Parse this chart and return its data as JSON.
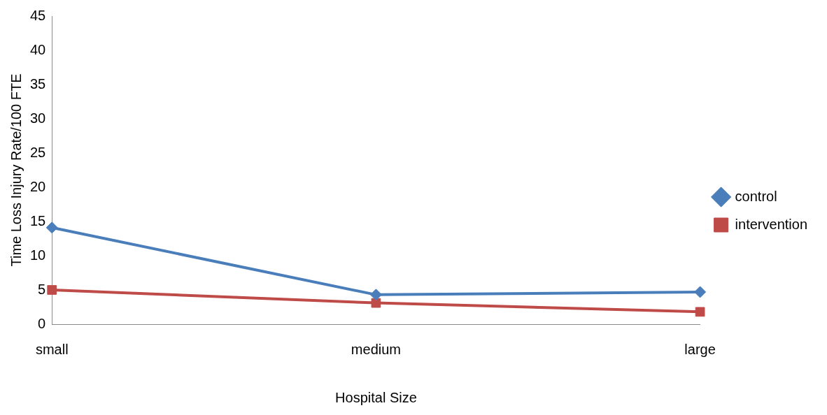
{
  "chart_data": {
    "type": "line",
    "xlabel": "Hospital Size",
    "ylabel": "Time Loss Injury Rate/100 FTE",
    "categories": [
      "small",
      "medium",
      "large"
    ],
    "series": [
      {
        "name": "control",
        "color": "#4a7ebb",
        "values": [
          14.1,
          4.3,
          4.7
        ],
        "marker": "diamond"
      },
      {
        "name": "intervention",
        "color": "#be4b48",
        "values": [
          5.0,
          3.1,
          1.8
        ],
        "marker": "square"
      }
    ],
    "ylim": [
      0,
      45
    ],
    "yticks": [
      0,
      5,
      10,
      15,
      20,
      25,
      30,
      35,
      40,
      45
    ],
    "grid": false,
    "legend": "right",
    "line_style": "solid"
  }
}
